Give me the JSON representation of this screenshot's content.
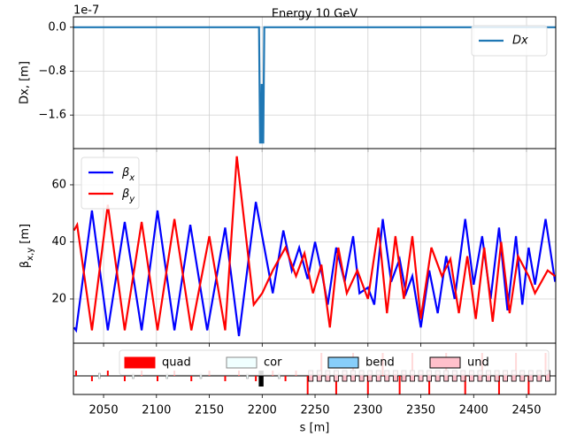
{
  "chart_data": [
    {
      "type": "line",
      "title": "Energy 10 GeV",
      "ylabel": "Dx, [m]",
      "offset_text": "1e-7",
      "xlim": [
        2021.5,
        2477.6
      ],
      "xticks": [
        2050,
        2100,
        2150,
        2200,
        2250,
        2300,
        2350,
        2400,
        2450
      ],
      "ylim": [
        -2.21,
        0.19
      ],
      "yticks": [
        {
          "value": 0,
          "label": "0.0"
        },
        {
          "value": -0.8,
          "label": "−0.8"
        },
        {
          "value": -1.6,
          "label": "−1.6"
        }
      ],
      "grid": true,
      "legend": "upper right",
      "series": [
        {
          "name": "Dx",
          "color": "#1f77b4",
          "x": [
            2021.5,
            2197,
            2198,
            2199,
            2199.5,
            2200,
            2200.5,
            2201,
            2202,
            2477.6
          ],
          "values": [
            0,
            0,
            -2.1,
            -2.1,
            -1.05,
            -1.05,
            -2.1,
            -2.1,
            0,
            0
          ]
        }
      ]
    },
    {
      "type": "line",
      "ylabel": "β_{x,y} [m]",
      "xlim": [
        2021.5,
        2477.6
      ],
      "xticks": [
        2050,
        2100,
        2150,
        2200,
        2250,
        2300,
        2350,
        2400,
        2450
      ],
      "ylim": [
        4.5,
        72.7
      ],
      "yticks": [
        20,
        40,
        60
      ],
      "grid": true,
      "legend": "upper left",
      "series": [
        {
          "name": "β_x",
          "color": "#0000ff",
          "x": [
            2022,
            2024,
            2039,
            2054,
            2070,
            2086,
            2101,
            2117,
            2132,
            2148,
            2165,
            2178,
            2194,
            2210,
            2220,
            2228,
            2235,
            2243,
            2250,
            2257,
            2262,
            2270,
            2278,
            2286,
            2292,
            2300,
            2306,
            2314,
            2322,
            2330,
            2336,
            2342,
            2350,
            2358,
            2366,
            2374,
            2382,
            2392,
            2400,
            2408,
            2416,
            2424,
            2432,
            2440,
            2446,
            2452,
            2458,
            2468,
            2477
          ],
          "values": [
            10,
            9,
            51,
            9,
            47,
            9,
            51,
            9,
            46,
            9,
            45,
            7,
            54,
            22,
            44,
            30,
            38,
            27,
            40,
            28,
            18,
            38,
            26,
            42,
            22,
            24,
            18,
            48,
            26,
            34,
            22,
            28,
            10,
            30,
            15,
            35,
            20,
            48,
            25,
            42,
            20,
            45,
            16,
            42,
            18,
            38,
            25,
            48,
            26
          ]
        },
        {
          "name": "β_y",
          "color": "#ff0000",
          "x": [
            2022,
            2025,
            2039,
            2054,
            2070,
            2086,
            2101,
            2117,
            2133,
            2150,
            2165,
            2176,
            2192,
            2200,
            2210,
            2222,
            2232,
            2240,
            2248,
            2256,
            2264,
            2272,
            2280,
            2290,
            2300,
            2310,
            2318,
            2326,
            2334,
            2342,
            2350,
            2360,
            2370,
            2378,
            2386,
            2394,
            2402,
            2410,
            2418,
            2426,
            2434,
            2442,
            2452,
            2458,
            2470,
            2477
          ],
          "values": [
            44,
            46,
            9,
            53,
            9,
            47,
            9,
            48,
            9,
            42,
            9,
            70,
            18,
            22,
            30,
            38,
            28,
            36,
            22,
            32,
            10,
            38,
            22,
            30,
            20,
            45,
            15,
            42,
            20,
            42,
            13,
            38,
            28,
            34,
            15,
            35,
            13,
            38,
            12,
            40,
            15,
            35,
            28,
            22,
            30,
            28
          ]
        }
      ]
    },
    {
      "type": "lattice",
      "xlabel": "s [m]",
      "xlim": [
        2021.5,
        2477.6
      ],
      "xticks": [
        2050,
        2100,
        2150,
        2200,
        2250,
        2300,
        2350,
        2400,
        2450
      ],
      "series": [
        {
          "name": "quad",
          "color": "#ff0000",
          "s": [
            2024,
            2039,
            2054,
            2070,
            2086,
            2101,
            2117,
            2133,
            2150,
            2165,
            2178,
            2194,
            2210,
            2222,
            2232,
            2243,
            2256,
            2270,
            2286,
            2300,
            2314,
            2330,
            2342,
            2358,
            2374,
            2392,
            2408,
            2424,
            2440,
            2452,
            2468
          ]
        },
        {
          "name": "cor",
          "color": "#f0ffff",
          "s": [
            2046,
            2078,
            2110,
            2142,
            2186,
            2216
          ]
        },
        {
          "name": "bend",
          "color": "#87cefa",
          "s": [
            2198,
            2200
          ]
        },
        {
          "name": "und",
          "color": "#ffc0cb",
          "s": [
            2246,
            2254,
            2262,
            2270,
            2278,
            2286,
            2294,
            2302,
            2310,
            2318,
            2326,
            2334,
            2342,
            2350,
            2358,
            2366,
            2374,
            2382,
            2390,
            2398,
            2406,
            2414,
            2422,
            2430,
            2438,
            2446,
            2454,
            2462,
            2470
          ]
        }
      ]
    }
  ]
}
